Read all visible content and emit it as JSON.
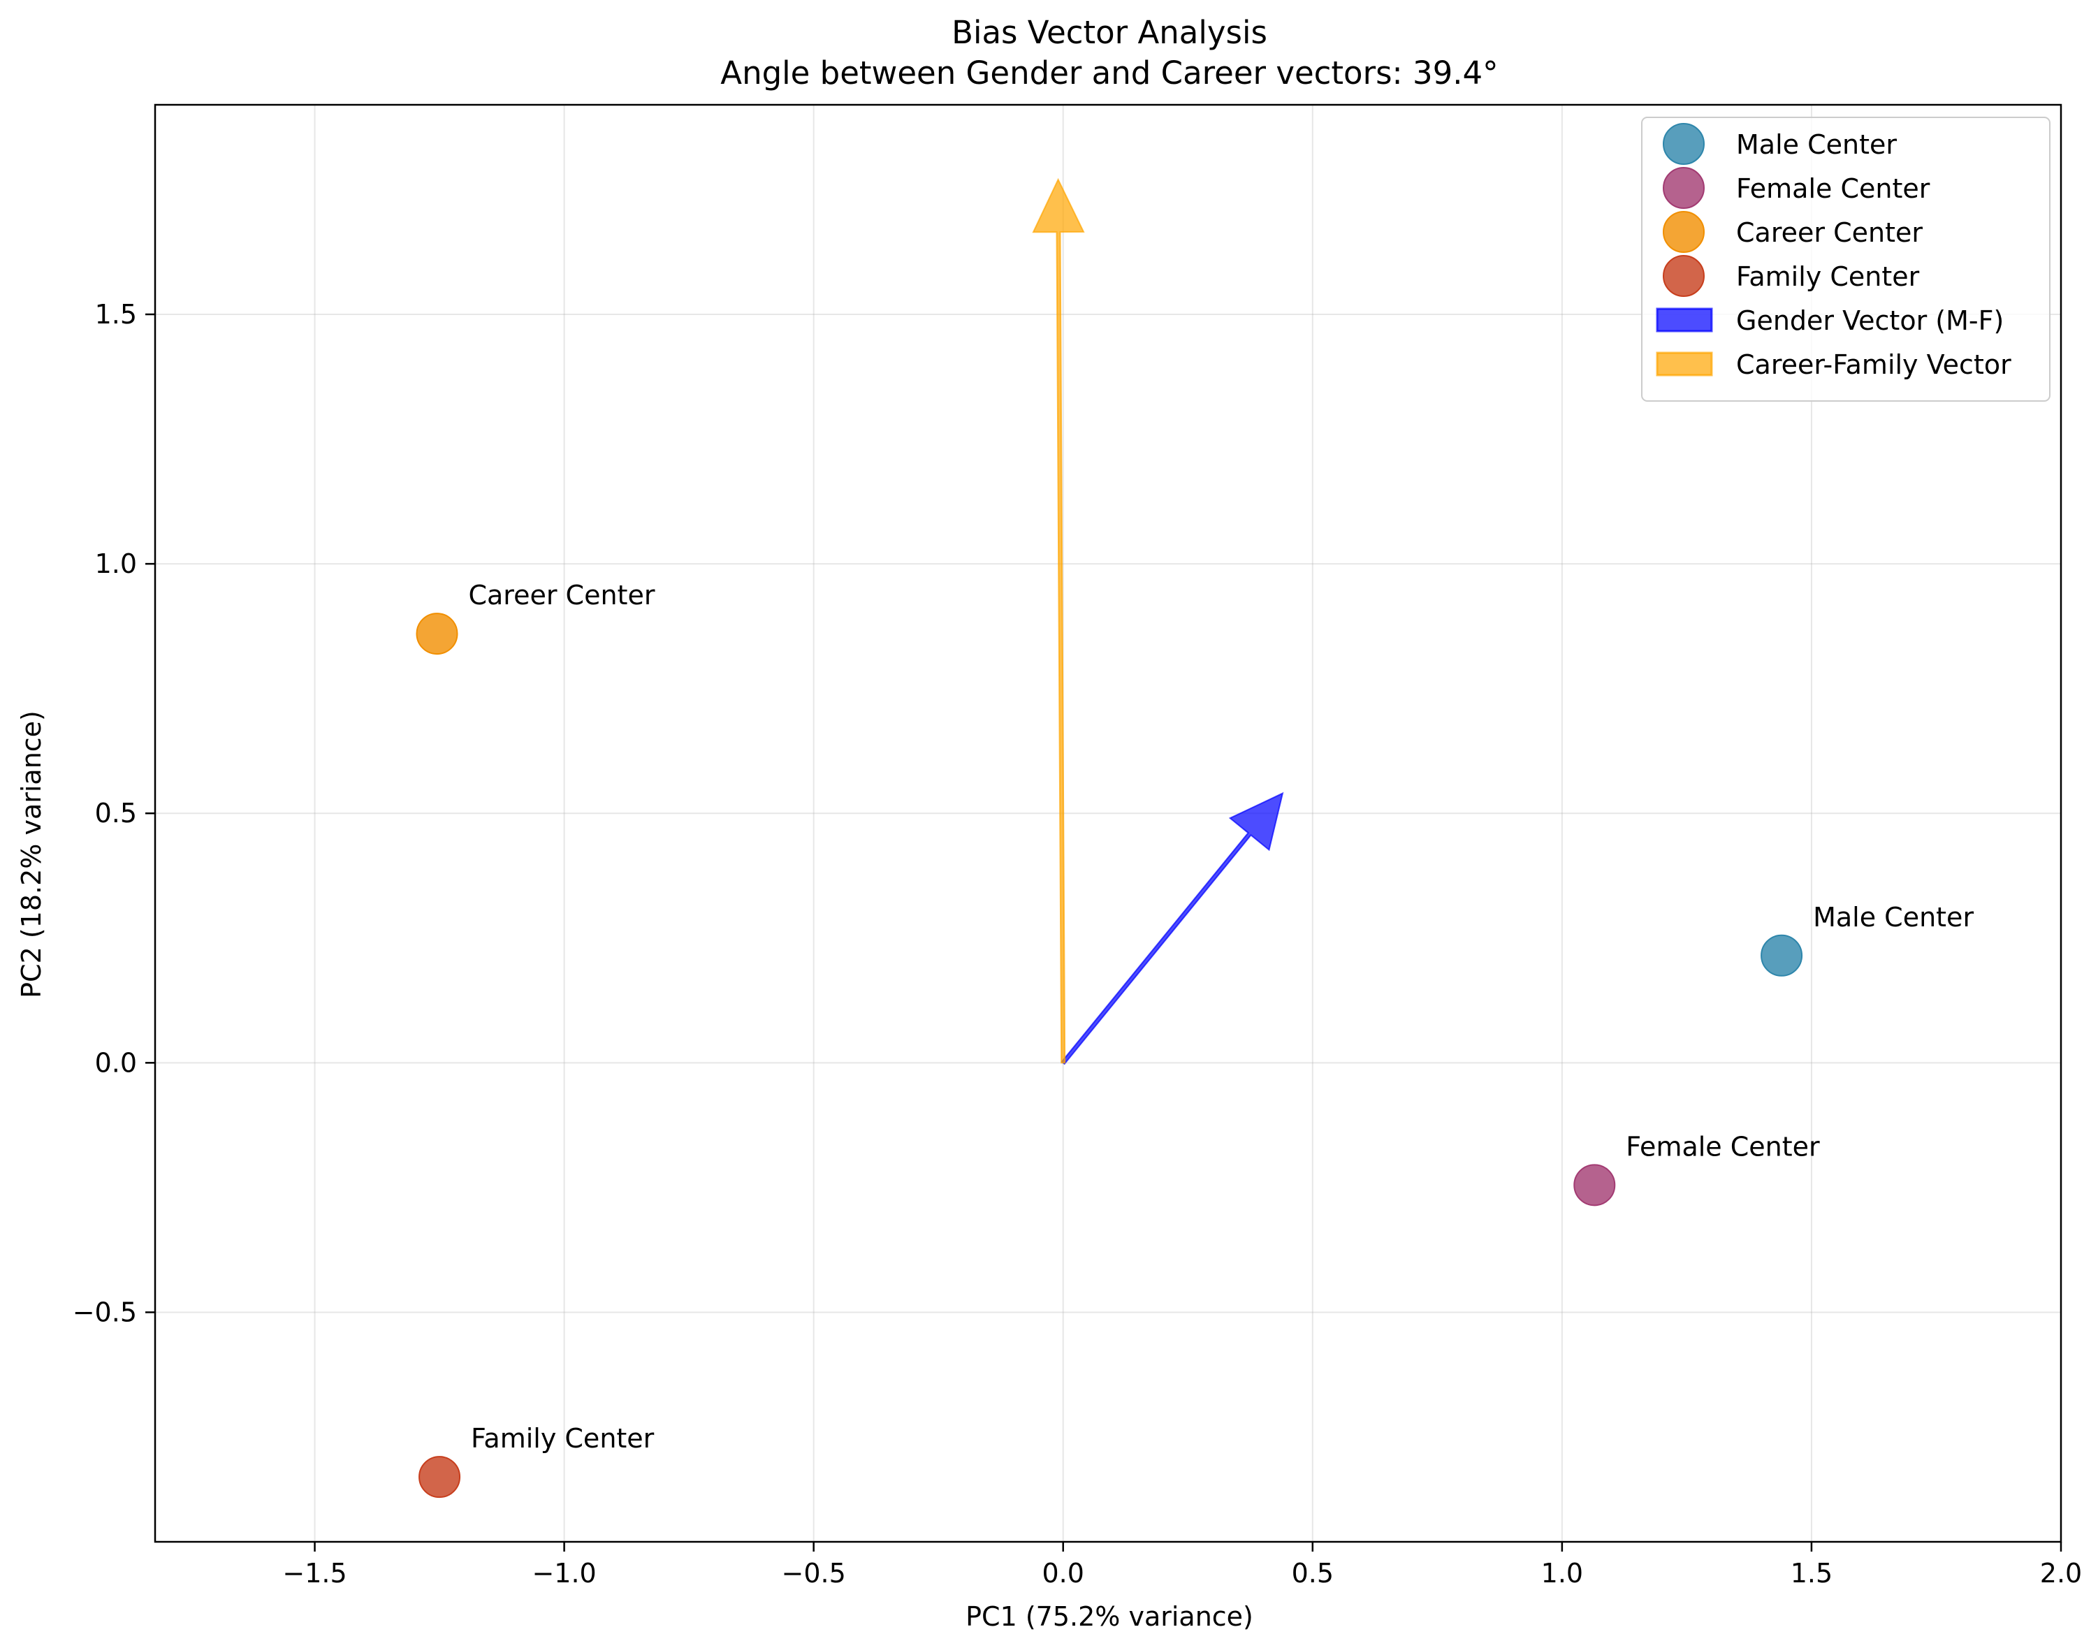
{
  "chart_data": {
    "type": "scatter",
    "title": "Bias Vector Analysis",
    "subtitle": "Angle between Gender and Career vectors: 39.4°",
    "xlabel": "PC1 (75.2% variance)",
    "ylabel": "PC2 (18.2% variance)",
    "xlim": [
      -1.82,
      2.0
    ],
    "ylim": [
      -0.96,
      1.92
    ],
    "x_ticks": [
      -1.5,
      -1.0,
      -0.5,
      0.0,
      0.5,
      1.0,
      1.5,
      2.0
    ],
    "x_tick_labels": [
      "−1.5",
      "−1.0",
      "−0.5",
      "0.0",
      "0.5",
      "1.0",
      "1.5",
      "2.0"
    ],
    "y_ticks": [
      -0.5,
      0.0,
      0.5,
      1.0,
      1.5
    ],
    "y_tick_labels": [
      "−0.5",
      "0.0",
      "0.5",
      "1.0",
      "1.5"
    ],
    "grid": true,
    "legend_position": "top-right",
    "series": [
      {
        "name": "Male Center",
        "x": 1.44,
        "y": 0.215,
        "color": "#2e86ab"
      },
      {
        "name": "Female Center",
        "x": 1.065,
        "y": -0.245,
        "color": "#a23b72"
      },
      {
        "name": "Career Center",
        "x": -1.255,
        "y": 0.86,
        "color": "#f18f01"
      },
      {
        "name": "Family Center",
        "x": -1.25,
        "y": -0.83,
        "color": "#c73e1d"
      }
    ],
    "vectors": [
      {
        "name": "Gender Vector (M-F)",
        "x0": 0.0,
        "y0": 0.0,
        "x1": 0.44,
        "y1": 0.54,
        "color": "#0000ff"
      },
      {
        "name": "Career-Family Vector",
        "x0": 0.0,
        "y0": 0.0,
        "x1": -0.01,
        "y1": 1.77,
        "color": "#ffa500"
      }
    ]
  }
}
